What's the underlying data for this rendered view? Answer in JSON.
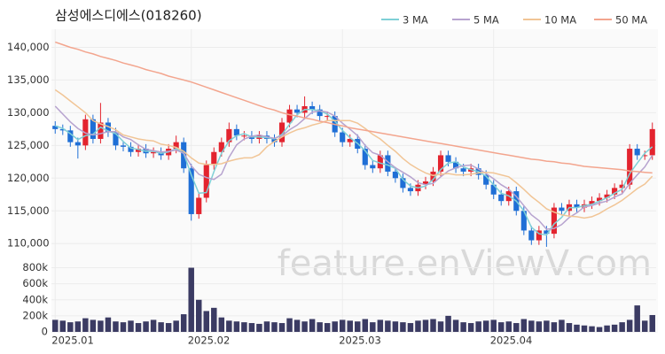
{
  "chart_data": {
    "type": "candlestick",
    "title": "삼성에스디에스(018260)",
    "watermark": "feature.enViewV.com",
    "categories": [
      "2025.01",
      null,
      null,
      null,
      null,
      null,
      null,
      null,
      null,
      null,
      null,
      null,
      null,
      null,
      null,
      null,
      null,
      null,
      "2025.02",
      null,
      null,
      null,
      null,
      null,
      null,
      null,
      null,
      null,
      null,
      null,
      null,
      null,
      null,
      null,
      null,
      null,
      null,
      null,
      "2025.03",
      null,
      null,
      null,
      null,
      null,
      null,
      null,
      null,
      null,
      null,
      null,
      null,
      null,
      null,
      null,
      null,
      null,
      null,
      null,
      "2025.04",
      null,
      null,
      null,
      null,
      null,
      null,
      null,
      null,
      null,
      null,
      null,
      null,
      null,
      null,
      null,
      null,
      null,
      null,
      null,
      null,
      null
    ],
    "open": [
      128000,
      127500,
      127300,
      125500,
      125000,
      129000,
      126000,
      128500,
      127000,
      125000,
      124800,
      124000,
      124500,
      123800,
      124000,
      123500,
      124500,
      125500,
      121500,
      114500,
      117000,
      122000,
      124000,
      125500,
      127500,
      126500,
      126500,
      126000,
      126500,
      126000,
      125500,
      128500,
      130500,
      130000,
      131000,
      130500,
      129500,
      129500,
      127000,
      125500,
      126000,
      124500,
      122000,
      121500,
      123500,
      121000,
      120000,
      118500,
      118000,
      119000,
      119500,
      121000,
      123500,
      122500,
      121500,
      121000,
      121500,
      120500,
      119000,
      117500,
      116500,
      118000,
      115000,
      112000,
      110500,
      112000,
      111500,
      115500,
      115000,
      116000,
      115500,
      116000,
      116500,
      117000,
      117500,
      118500,
      119000,
      124500,
      123500,
      123500
    ],
    "high": [
      128700,
      128200,
      128000,
      126200,
      129700,
      129700,
      131500,
      129200,
      127700,
      125700,
      125500,
      125200,
      125200,
      124700,
      124700,
      125200,
      126500,
      126200,
      122200,
      117700,
      122700,
      124700,
      126200,
      128500,
      128200,
      127200,
      127200,
      127200,
      127200,
      126700,
      129200,
      131200,
      131200,
      132500,
      131700,
      131200,
      130200,
      130200,
      127700,
      126700,
      126700,
      125200,
      122700,
      124200,
      124200,
      121700,
      120700,
      119200,
      119700,
      120200,
      121700,
      124200,
      124200,
      123200,
      122200,
      122200,
      122200,
      121200,
      119700,
      118200,
      118700,
      118700,
      115700,
      112700,
      112700,
      112700,
      116200,
      116200,
      116700,
      116700,
      116700,
      117200,
      117700,
      118200,
      119200,
      119700,
      125200,
      125200,
      124200,
      128500
    ],
    "low": [
      126800,
      126600,
      124800,
      123000,
      124300,
      125300,
      125300,
      126300,
      124300,
      124100,
      123300,
      123300,
      123100,
      123100,
      122800,
      122800,
      123800,
      120800,
      113500,
      113800,
      116300,
      121300,
      123300,
      124800,
      125800,
      125800,
      125300,
      125300,
      125300,
      124800,
      124800,
      127800,
      129300,
      129300,
      129800,
      128800,
      128800,
      126300,
      124800,
      124800,
      123800,
      121300,
      120800,
      120800,
      120300,
      119300,
      117800,
      117300,
      117300,
      118300,
      118800,
      120300,
      121800,
      120800,
      120300,
      120300,
      119800,
      118300,
      116800,
      115800,
      115800,
      114300,
      111300,
      109800,
      109800,
      109500,
      110800,
      114300,
      114300,
      114800,
      114800,
      115300,
      115800,
      116300,
      116800,
      117800,
      118300,
      122800,
      122800,
      122800
    ],
    "close": [
      127500,
      127300,
      125500,
      125000,
      129000,
      126000,
      128500,
      127000,
      125000,
      124800,
      124000,
      124500,
      123800,
      124000,
      123500,
      124500,
      125500,
      121500,
      114500,
      117000,
      122000,
      124000,
      125500,
      127500,
      126500,
      126500,
      126000,
      126500,
      126000,
      125500,
      128500,
      130500,
      130000,
      131000,
      130500,
      129500,
      129500,
      127000,
      125500,
      126000,
      124500,
      122000,
      121500,
      123500,
      121000,
      120000,
      118500,
      118000,
      119000,
      119500,
      121000,
      123500,
      122500,
      121500,
      121000,
      121500,
      120500,
      119000,
      117500,
      116500,
      118000,
      115000,
      112000,
      110500,
      112000,
      111500,
      115500,
      115000,
      116000,
      115500,
      116000,
      116500,
      117000,
      117500,
      118500,
      119000,
      124500,
      123500,
      123500,
      127500
    ],
    "volume": [
      150000,
      140000,
      120000,
      130000,
      170000,
      150000,
      140000,
      180000,
      130000,
      120000,
      140000,
      110000,
      130000,
      150000,
      120000,
      110000,
      140000,
      220000,
      800000,
      400000,
      260000,
      300000,
      180000,
      140000,
      130000,
      120000,
      110000,
      100000,
      130000,
      120000,
      110000,
      170000,
      150000,
      130000,
      160000,
      120000,
      110000,
      130000,
      150000,
      140000,
      130000,
      160000,
      120000,
      150000,
      140000,
      130000,
      120000,
      110000,
      140000,
      150000,
      160000,
      130000,
      200000,
      150000,
      120000,
      110000,
      130000,
      140000,
      150000,
      120000,
      130000,
      110000,
      160000,
      140000,
      130000,
      140000,
      120000,
      150000,
      110000,
      90000,
      80000,
      70000,
      60000,
      80000,
      90000,
      120000,
      150000,
      330000,
      140000,
      210000
    ],
    "series": [
      {
        "name": "3 MA",
        "color": "#7fd0d6",
        "values": [
          128000,
          127600,
          126800,
          125900,
          126500,
          126700,
          127800,
          127200,
          126800,
          125600,
          124600,
          124400,
          124100,
          124100,
          123800,
          124000,
          124500,
          123800,
          120500,
          117700,
          117800,
          121000,
          123800,
          125700,
          126500,
          126800,
          126300,
          126300,
          126200,
          126000,
          126700,
          128200,
          129700,
          130500,
          130500,
          130300,
          129800,
          128700,
          127300,
          126200,
          125300,
          124200,
          122700,
          122300,
          122000,
          121500,
          119800,
          118800,
          118500,
          118800,
          119800,
          121300,
          122300,
          122500,
          121700,
          121300,
          121000,
          120300,
          119000,
          117700,
          117300,
          116500,
          115000,
          112500,
          111500,
          111300,
          113000,
          114000,
          115500,
          115500,
          115800,
          116000,
          116500,
          117000,
          117700,
          118300,
          120700,
          122300,
          123800,
          124800
        ]
      },
      {
        "name": "5 MA",
        "color": "#b7a3cf",
        "values": [
          131000,
          129800,
          128600,
          127600,
          126900,
          126600,
          126800,
          127100,
          127100,
          126300,
          125900,
          125100,
          124400,
          124200,
          124000,
          124100,
          124300,
          123800,
          121900,
          120600,
          120100,
          119800,
          120600,
          123200,
          125100,
          126000,
          126400,
          126600,
          126300,
          126100,
          126500,
          127400,
          128100,
          129100,
          130100,
          130300,
          130100,
          129500,
          128400,
          127500,
          126500,
          125000,
          123900,
          123500,
          122500,
          121600,
          120900,
          120200,
          119300,
          119000,
          119200,
          120200,
          121100,
          121600,
          121900,
          122000,
          121400,
          120700,
          119900,
          119000,
          118300,
          117200,
          115800,
          114400,
          113500,
          112200,
          112300,
          112900,
          114000,
          114700,
          115600,
          115800,
          116200,
          116500,
          117100,
          117600,
          119200,
          120500,
          121700,
          123500
        ]
      },
      {
        "name": "10 MA",
        "color": "#f1c596",
        "values": [
          133500,
          132700,
          131800,
          130900,
          130000,
          128800,
          128300,
          127900,
          127400,
          126600,
          126300,
          126000,
          125800,
          125700,
          125200,
          125000,
          124700,
          124100,
          123100,
          122300,
          122100,
          122100,
          122200,
          122600,
          122900,
          123100,
          123100,
          123600,
          124800,
          125600,
          126300,
          126900,
          127400,
          127700,
          128100,
          128400,
          128800,
          128800,
          128800,
          128800,
          128400,
          127600,
          126700,
          126000,
          125000,
          124100,
          123000,
          122100,
          121400,
          120800,
          120400,
          120600,
          120700,
          120500,
          120500,
          120600,
          120800,
          120900,
          120800,
          120500,
          120200,
          119300,
          118300,
          117200,
          116300,
          115300,
          114800,
          114400,
          114200,
          114100,
          113900,
          114100,
          114600,
          115300,
          115900,
          116600,
          117500,
          118400,
          119100,
          120300
        ]
      },
      {
        "name": "50 MA",
        "color": "#f3a58e",
        "values": [
          140800,
          140400,
          140000,
          139700,
          139300,
          139000,
          138600,
          138300,
          138000,
          137600,
          137300,
          137000,
          136600,
          136300,
          136000,
          135600,
          135300,
          135000,
          134700,
          134300,
          133900,
          133500,
          133100,
          132700,
          132300,
          131900,
          131500,
          131100,
          130700,
          130400,
          130000,
          129700,
          129500,
          129200,
          129000,
          128700,
          128500,
          128200,
          128000,
          127700,
          127500,
          127300,
          127100,
          126900,
          126700,
          126500,
          126300,
          126100,
          125900,
          125700,
          125500,
          125300,
          125100,
          124900,
          124700,
          124500,
          124300,
          124100,
          123900,
          123700,
          123500,
          123300,
          123100,
          122900,
          122800,
          122600,
          122500,
          122300,
          122200,
          122000,
          121800,
          121700,
          121600,
          121500,
          121400,
          121300,
          121100,
          121000,
          120900,
          120800
        ]
      }
    ],
    "up_color": "#e3242f",
    "down_color": "#1f6fd6",
    "volume_color": "#3b3b63",
    "ylim": [
      108000,
      142500
    ],
    "yticks": [
      {
        "value": 110000,
        "label": "110,000"
      },
      {
        "value": 115000,
        "label": "115,000"
      },
      {
        "value": 120000,
        "label": "120,000"
      },
      {
        "value": 125000,
        "label": "125,000"
      },
      {
        "value": 130000,
        "label": "130,000"
      },
      {
        "value": 135000,
        "label": "135,000"
      },
      {
        "value": 140000,
        "label": "140,000"
      }
    ],
    "volume_ylim": [
      0,
      850000
    ],
    "volume_yticks": [
      0,
      {
        "value": 200000,
        "label": "200k"
      },
      {
        "value": 400000,
        "label": "400k"
      },
      {
        "value": 600000,
        "label": "600k"
      },
      {
        "value": 800000,
        "label": "800k"
      }
    ],
    "grid": true
  }
}
